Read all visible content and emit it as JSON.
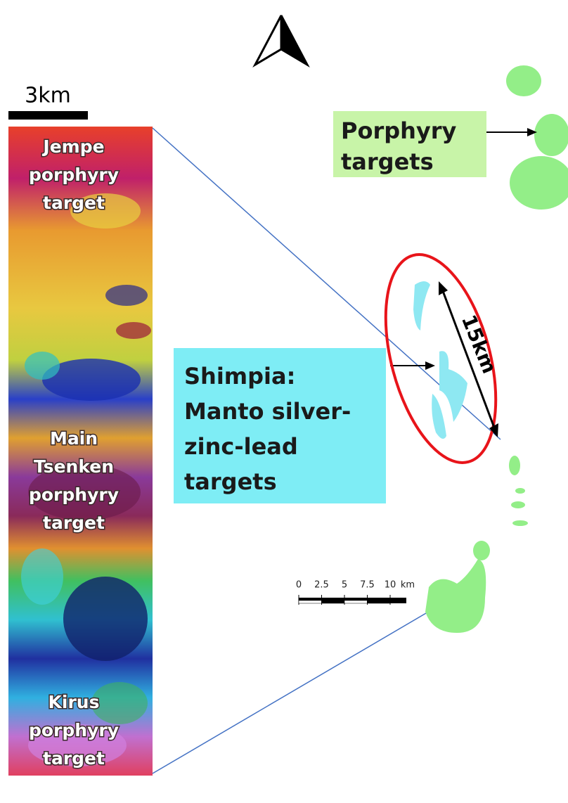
{
  "north_arrow": {},
  "strip_scale_label": "3km",
  "strip_labels": [
    {
      "lines": [
        "Jempe",
        "porphyry",
        "target"
      ]
    },
    {
      "lines": [
        "Main",
        "Tsenken",
        "porphyry",
        "target"
      ]
    },
    {
      "lines": [
        "Kirus",
        "porphyry",
        "target"
      ]
    }
  ],
  "porphyry_callout": {
    "lines": [
      "Porphyry",
      "targets"
    ]
  },
  "shimpia_callout": {
    "lines": [
      "Shimpia:",
      "Manto silver-",
      "zinc-lead",
      "targets"
    ]
  },
  "distance_label": "15km",
  "scale_bar": {
    "ticks": [
      0,
      2.5,
      5,
      7.5,
      10
    ],
    "unit": "km"
  }
}
